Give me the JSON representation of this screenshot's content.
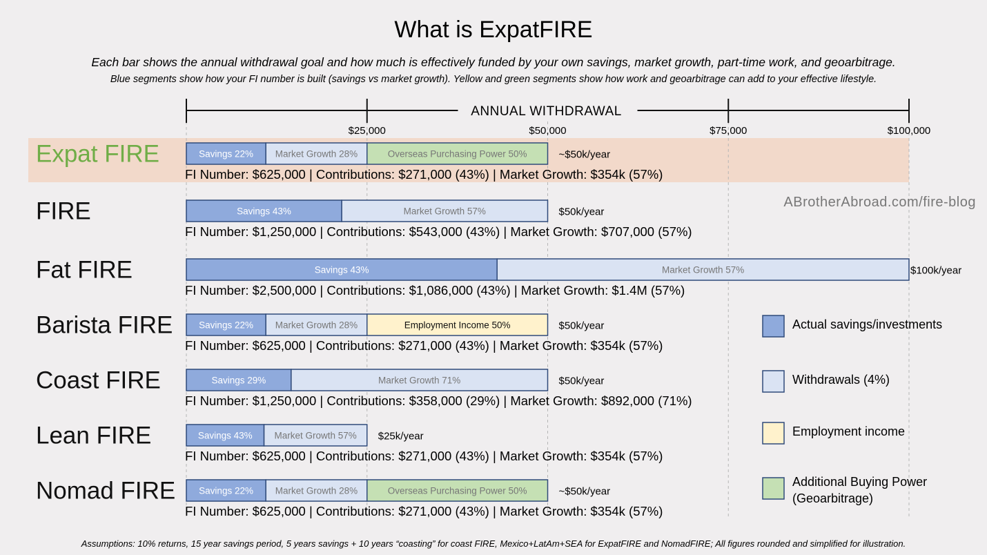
{
  "header": {
    "title": "What is ExpatFIRE",
    "subtitle_1": "Each bar shows the annual withdrawal goal and how much is effectively funded by your own savings, market growth, part-time work, and geoarbitrage.",
    "subtitle_2": "Blue segments show how your FI number is built (savings vs market growth). Yellow and green segments show how work and geoarbitrage can add to your effective lifestyle."
  },
  "watermark": "ABrotherAbroad.com/fire-blog",
  "footnote": "Assumptions: 10% returns, 15 year savings period, 5 years savings + 10 years “coasting” for coast FIRE, Mexico+LatAm+SEA for ExpatFIRE and NomadFIRE; All figures rounded and simplified for illustration.",
  "colors": {
    "savings": "#8faadc",
    "market_growth": "#dae3f3",
    "employment": "#fff2cc",
    "geoarbitrage": "#c5e0b4",
    "bar_border": "#2f4a7a",
    "highlight_band": "#f2d9ca",
    "highlight_label": "#70ad47"
  },
  "chart_data": {
    "type": "bar",
    "orientation": "horizontal-stacked",
    "axis": {
      "title": "ANNUAL WITHDRAWAL",
      "range": [
        0,
        100000
      ],
      "ticks": [
        25000,
        50000,
        75000,
        100000
      ],
      "tick_labels": [
        "$25,000",
        "$50,000",
        "$75,000",
        "$100,000"
      ],
      "grid": true
    },
    "legend": {
      "placement": "right",
      "items": [
        {
          "key": "savings",
          "label": "Actual savings/investments"
        },
        {
          "key": "market_growth",
          "label": "Withdrawals (4%)"
        },
        {
          "key": "employment",
          "label": "Employment income"
        },
        {
          "key": "geoarbitrage",
          "label": "Additional Buying Power (Geoarbitrage)"
        }
      ]
    },
    "rows": [
      {
        "label": "Expat FIRE",
        "highlight": true,
        "value_label": "~$50k/year",
        "info": "FI Number: $625,000 | Contributions: $271,000 (43%) | Market Growth: $354k (57%)",
        "segments": [
          {
            "key": "savings",
            "label": "Savings 22%",
            "value": 11000
          },
          {
            "key": "market_growth",
            "label": "Market Growth 28%",
            "value": 14000
          },
          {
            "key": "geoarbitrage",
            "label": "Overseas Purchasing Power 50%",
            "value": 25000
          }
        ]
      },
      {
        "label": "FIRE",
        "value_label": "$50k/year",
        "info": "FI Number: $1,250,000 | Contributions: $543,000 (43%) | Market Growth: $707,000 (57%)",
        "segments": [
          {
            "key": "savings",
            "label": "Savings 43%",
            "value": 21500
          },
          {
            "key": "market_growth",
            "label": "Market Growth 57%",
            "value": 28500
          }
        ]
      },
      {
        "label": "Fat FIRE",
        "value_label": "$100k/year",
        "info": "FI Number: $2,500,000 | Contributions: $1,086,000 (43%) | Market Growth: $1.4M (57%)",
        "segments": [
          {
            "key": "savings",
            "label": "Savings 43%",
            "value": 43000
          },
          {
            "key": "market_growth",
            "label": "Market Growth 57%",
            "value": 57000
          }
        ]
      },
      {
        "label": "Barista FIRE",
        "value_label": "$50k/year",
        "info": "FI Number: $625,000 | Contributions: $271,000 (43%) | Market Growth: $354k (57%)",
        "segments": [
          {
            "key": "savings",
            "label": "Savings 22%",
            "value": 11000
          },
          {
            "key": "market_growth",
            "label": "Market Growth 28%",
            "value": 14000
          },
          {
            "key": "employment",
            "label": "Employment Income 50%",
            "value": 25000
          }
        ]
      },
      {
        "label": "Coast FIRE",
        "value_label": "$50k/year",
        "info": "FI Number: $1,250,000 | Contributions: $358,000 (29%) | Market Growth: $892,000 (71%)",
        "segments": [
          {
            "key": "savings",
            "label": "Savings 29%",
            "value": 14500
          },
          {
            "key": "market_growth",
            "label": "Market Growth 71%",
            "value": 35500
          }
        ]
      },
      {
        "label": "Lean FIRE",
        "value_label": "$25k/year",
        "info": "FI Number: $625,000 | Contributions: $271,000 (43%) | Market Growth: $354k (57%)",
        "segments": [
          {
            "key": "savings",
            "label": "Savings 43%",
            "value": 10750
          },
          {
            "key": "market_growth",
            "label": "Market Growth 57%",
            "value": 14250
          }
        ]
      },
      {
        "label": "Nomad FIRE",
        "value_label": "~$50k/year",
        "info": "FI Number: $625,000 | Contributions: $271,000 (43%) | Market Growth: $354k (57%)",
        "segments": [
          {
            "key": "savings",
            "label": "Savings 22%",
            "value": 11000
          },
          {
            "key": "market_growth",
            "label": "Market Growth 28%",
            "value": 14000
          },
          {
            "key": "geoarbitrage",
            "label": "Overseas Purchasing Power 50%",
            "value": 25000
          }
        ]
      }
    ]
  }
}
